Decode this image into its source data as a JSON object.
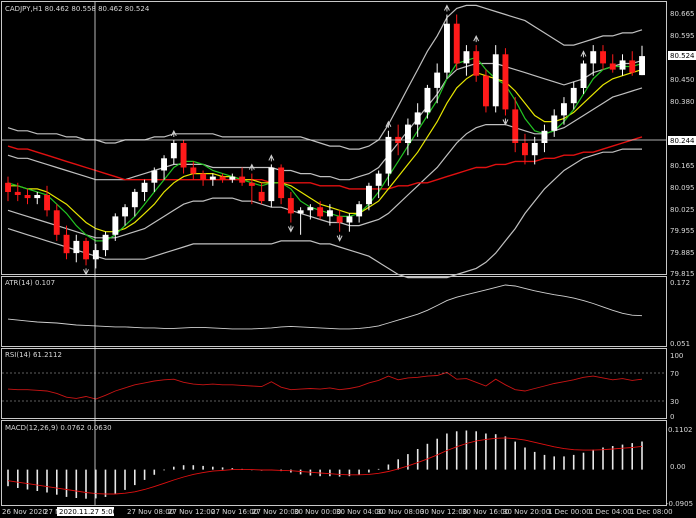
{
  "colors": {
    "background": "#000000",
    "frame": "#c8c8c8",
    "bull": "#ffffff",
    "bear": "#ff1a1a",
    "bands": "#c0c0c0",
    "ma_fast": "#22c522",
    "ma_mid": "#e6e600",
    "ma_slow": "#e01010",
    "atr": "#d0d0d0",
    "rsi": "#c81414",
    "macd_hist": "#e8e8e8",
    "macd_signal": "#e01010",
    "price_tag_bg": "#ffffff"
  },
  "panels": {
    "main": {
      "label": "CADJPY,H1  80.462 80.558 80.462 80.524"
    },
    "atr": {
      "label": "ATR(14) 0.107"
    },
    "rsi": {
      "label": "RSI(14) 61.2112"
    },
    "macd": {
      "label": "MACD(12,26,9) 0.0762 0.0630"
    }
  },
  "price_axis": {
    "ticks": [
      "80.665",
      "80.595",
      "80.524",
      "80.450",
      "80.380",
      "80.244",
      "80.165",
      "80.095",
      "80.025",
      "79.955",
      "79.885",
      "79.815"
    ],
    "current_price": "80.524",
    "crosshair_price": "80.244"
  },
  "atr_axis": {
    "ticks": [
      "0.172",
      "0.051"
    ]
  },
  "rsi_axis": {
    "ticks": [
      "100",
      "70",
      "30",
      "0"
    ]
  },
  "macd_axis": {
    "ticks": [
      "0.1102",
      "0.00",
      "-0.0905"
    ]
  },
  "time_axis": {
    "ticks": [
      "26 Nov 2020",
      "27 Nov 04:00",
      "27 Nov 08:00",
      "27 Nov 12:00",
      "27 Nov 16:00",
      "27 Nov 20:00",
      "30 Nov 00:00",
      "30 Nov 04:00",
      "30 Nov 08:00",
      "30 Nov 12:00",
      "30 Nov 16:00",
      "30 Nov 20:00",
      "1 Dec 00:00",
      "1 Dec 04:00",
      "1 Dec 08:00"
    ],
    "crosshair_time": "2020.11.27 5:00"
  },
  "chart_data": {
    "type": "candlestick",
    "symbol": "CADJPY",
    "timeframe": "H1",
    "ohlc": [
      [
        80.11,
        80.13,
        80.05,
        80.08
      ],
      [
        80.08,
        80.11,
        80.05,
        80.07
      ],
      [
        80.07,
        80.09,
        80.04,
        80.06
      ],
      [
        80.06,
        80.08,
        80.04,
        80.07
      ],
      [
        80.07,
        80.1,
        80.0,
        80.02
      ],
      [
        80.02,
        80.04,
        79.92,
        79.94
      ],
      [
        79.94,
        79.97,
        79.86,
        79.88
      ],
      [
        79.88,
        79.94,
        79.85,
        79.92
      ],
      [
        79.92,
        79.93,
        79.84,
        79.86
      ],
      [
        79.86,
        79.91,
        79.83,
        79.89
      ],
      [
        79.89,
        79.95,
        79.87,
        79.94
      ],
      [
        79.94,
        80.01,
        79.92,
        80.0
      ],
      [
        80.0,
        80.04,
        79.97,
        80.03
      ],
      [
        80.03,
        80.09,
        80.0,
        80.08
      ],
      [
        80.08,
        80.12,
        80.05,
        80.11
      ],
      [
        80.11,
        80.16,
        80.08,
        80.15
      ],
      [
        80.15,
        80.2,
        80.12,
        80.19
      ],
      [
        80.19,
        80.25,
        80.17,
        80.24
      ],
      [
        80.24,
        80.25,
        80.14,
        80.16
      ],
      [
        80.16,
        80.18,
        80.12,
        80.14
      ],
      [
        80.14,
        80.15,
        80.1,
        80.12
      ],
      [
        80.12,
        80.14,
        80.1,
        80.13
      ],
      [
        80.13,
        80.14,
        80.11,
        80.12
      ],
      [
        80.12,
        80.14,
        80.11,
        80.13
      ],
      [
        80.13,
        80.16,
        80.1,
        80.11
      ],
      [
        80.11,
        80.14,
        80.04,
        80.1
      ],
      [
        80.08,
        80.11,
        80.04,
        80.05
      ],
      [
        80.05,
        80.17,
        80.03,
        80.16
      ],
      [
        80.16,
        80.17,
        80.04,
        80.06
      ],
      [
        80.06,
        80.08,
        79.98,
        80.01
      ],
      [
        80.01,
        80.03,
        79.94,
        80.02
      ],
      [
        80.02,
        80.04,
        79.99,
        80.03
      ],
      [
        80.03,
        80.05,
        79.99,
        80.0
      ],
      [
        80.0,
        80.04,
        79.97,
        80.02
      ],
      [
        80.0,
        80.02,
        79.95,
        79.98
      ],
      [
        79.98,
        80.01,
        79.95,
        80.0
      ],
      [
        80.0,
        80.05,
        79.98,
        80.04
      ],
      [
        80.04,
        80.11,
        80.02,
        80.1
      ],
      [
        80.1,
        80.15,
        80.06,
        80.14
      ],
      [
        80.14,
        80.28,
        80.1,
        80.26
      ],
      [
        80.26,
        80.3,
        80.2,
        80.24
      ],
      [
        80.24,
        80.32,
        80.2,
        80.3
      ],
      [
        80.3,
        80.37,
        80.26,
        80.34
      ],
      [
        80.34,
        80.43,
        80.32,
        80.42
      ],
      [
        80.42,
        80.5,
        80.37,
        80.47
      ],
      [
        80.47,
        80.66,
        80.45,
        80.63
      ],
      [
        80.63,
        80.66,
        80.48,
        80.5
      ],
      [
        80.5,
        80.56,
        80.46,
        80.54
      ],
      [
        80.54,
        80.56,
        80.44,
        80.46
      ],
      [
        80.46,
        80.48,
        80.34,
        80.36
      ],
      [
        80.36,
        80.56,
        80.34,
        80.53
      ],
      [
        80.53,
        80.55,
        80.33,
        80.35
      ],
      [
        80.35,
        80.39,
        80.21,
        80.24
      ],
      [
        80.24,
        80.27,
        80.17,
        80.2
      ],
      [
        80.2,
        80.26,
        80.17,
        80.24
      ],
      [
        80.24,
        80.3,
        80.21,
        80.28
      ],
      [
        80.28,
        80.35,
        80.26,
        80.33
      ],
      [
        80.33,
        80.39,
        80.3,
        80.37
      ],
      [
        80.37,
        80.44,
        80.35,
        80.42
      ],
      [
        80.42,
        80.51,
        80.4,
        80.5
      ],
      [
        80.5,
        80.56,
        80.46,
        80.54
      ],
      [
        80.54,
        80.56,
        80.48,
        80.5
      ],
      [
        80.5,
        80.53,
        80.47,
        80.48
      ],
      [
        80.48,
        80.53,
        80.46,
        80.51
      ],
      [
        80.51,
        80.54,
        80.46,
        80.47
      ],
      [
        80.462,
        80.558,
        80.462,
        80.524
      ]
    ],
    "ma_fast": [
      80.11,
      80.1,
      80.09,
      80.08,
      80.07,
      80.04,
      80.01,
      79.97,
      79.94,
      79.92,
      79.92,
      79.94,
      79.97,
      80.0,
      80.04,
      80.08,
      80.12,
      80.16,
      80.18,
      80.18,
      80.17,
      80.15,
      80.14,
      80.13,
      80.12,
      80.11,
      80.1,
      80.11,
      80.11,
      80.09,
      80.05,
      80.03,
      80.02,
      80.01,
      80.0,
      80.0,
      80.01,
      80.04,
      80.08,
      80.13,
      80.18,
      80.23,
      80.28,
      80.33,
      80.38,
      80.45,
      80.5,
      80.51,
      80.52,
      80.48,
      80.45,
      80.43,
      80.38,
      80.32,
      80.28,
      80.27,
      80.28,
      80.31,
      80.35,
      80.4,
      80.45,
      80.48,
      80.49,
      80.49,
      80.49,
      80.5
    ],
    "ma_mid": [
      80.1,
      80.1,
      80.09,
      80.09,
      80.08,
      80.06,
      80.04,
      80.01,
      79.98,
      79.96,
      79.95,
      79.95,
      79.96,
      79.98,
      80.01,
      80.04,
      80.08,
      80.11,
      80.13,
      80.14,
      80.14,
      80.14,
      80.13,
      80.13,
      80.12,
      80.12,
      80.11,
      80.11,
      80.11,
      80.1,
      80.08,
      80.06,
      80.04,
      80.03,
      80.02,
      80.01,
      80.01,
      80.03,
      80.05,
      80.09,
      80.13,
      80.17,
      80.21,
      80.26,
      80.31,
      80.37,
      80.42,
      80.45,
      80.47,
      80.46,
      80.45,
      80.44,
      80.41,
      80.37,
      80.33,
      80.31,
      80.31,
      80.32,
      80.34,
      80.37,
      80.4,
      80.43,
      80.45,
      80.46,
      80.47,
      80.48
    ],
    "ma_slow": [
      80.23,
      80.22,
      80.22,
      80.21,
      80.2,
      80.19,
      80.18,
      80.17,
      80.16,
      80.15,
      80.14,
      80.13,
      80.12,
      80.12,
      80.12,
      80.12,
      80.12,
      80.12,
      80.12,
      80.12,
      80.12,
      80.12,
      80.12,
      80.12,
      80.12,
      80.12,
      80.12,
      80.11,
      80.11,
      80.11,
      80.11,
      80.11,
      80.1,
      80.1,
      80.1,
      80.09,
      80.09,
      80.09,
      80.09,
      80.09,
      80.1,
      80.1,
      80.11,
      80.11,
      80.12,
      80.13,
      80.14,
      80.15,
      80.16,
      80.16,
      80.17,
      80.17,
      80.18,
      80.18,
      80.18,
      80.19,
      80.19,
      80.2,
      80.2,
      80.21,
      80.21,
      80.22,
      80.23,
      80.24,
      80.25,
      80.26
    ],
    "band_upper": [
      80.29,
      80.28,
      80.28,
      80.27,
      80.27,
      80.27,
      80.26,
      80.26,
      80.25,
      80.25,
      80.24,
      80.24,
      80.25,
      80.25,
      80.25,
      80.26,
      80.26,
      80.27,
      80.27,
      80.27,
      80.27,
      80.27,
      80.26,
      80.26,
      80.26,
      80.26,
      80.26,
      80.26,
      80.26,
      80.26,
      80.26,
      80.25,
      80.24,
      80.23,
      80.23,
      80.22,
      80.22,
      80.23,
      80.25,
      80.3,
      80.36,
      80.42,
      80.48,
      80.54,
      80.59,
      80.65,
      80.68,
      80.69,
      80.69,
      80.68,
      80.67,
      80.66,
      80.65,
      80.64,
      80.62,
      80.6,
      80.58,
      80.56,
      80.56,
      80.57,
      80.58,
      80.59,
      80.59,
      80.6,
      80.6,
      80.61
    ],
    "band_lower": [
      79.96,
      79.95,
      79.94,
      79.93,
      79.92,
      79.91,
      79.9,
      79.89,
      79.88,
      79.87,
      79.86,
      79.86,
      79.86,
      79.86,
      79.86,
      79.87,
      79.88,
      79.89,
      79.9,
      79.91,
      79.91,
      79.91,
      79.91,
      79.91,
      79.91,
      79.91,
      79.91,
      79.91,
      79.92,
      79.92,
      79.92,
      79.92,
      79.91,
      79.91,
      79.9,
      79.89,
      79.88,
      79.87,
      79.85,
      79.83,
      79.81,
      79.8,
      79.8,
      79.8,
      79.8,
      79.8,
      79.81,
      79.82,
      79.83,
      79.85,
      79.88,
      79.92,
      79.96,
      80.01,
      80.05,
      80.09,
      80.12,
      80.15,
      80.17,
      80.19,
      80.2,
      80.21,
      80.21,
      80.22,
      80.22,
      80.22
    ],
    "band_mid_upper": [
      80.2,
      80.19,
      80.19,
      80.18,
      80.17,
      80.16,
      80.15,
      80.14,
      80.13,
      80.12,
      80.12,
      80.12,
      80.12,
      80.13,
      80.14,
      80.15,
      80.16,
      80.17,
      80.17,
      80.17,
      80.17,
      80.16,
      80.16,
      80.16,
      80.16,
      80.16,
      80.16,
      80.16,
      80.15,
      80.15,
      80.14,
      80.14,
      80.13,
      80.13,
      80.12,
      80.12,
      80.13,
      80.14,
      80.16,
      80.2,
      80.24,
      80.28,
      80.32,
      80.36,
      80.4,
      80.45,
      80.48,
      80.49,
      80.5,
      80.5,
      80.5,
      80.49,
      80.48,
      80.47,
      80.46,
      80.45,
      80.44,
      80.43,
      80.44,
      80.45,
      80.47,
      80.48,
      80.49,
      80.5,
      80.5,
      80.51
    ],
    "band_mid_lower": [
      80.02,
      80.01,
      80.0,
      79.99,
      79.98,
      79.97,
      79.96,
      79.95,
      79.94,
      79.93,
      79.93,
      79.93,
      79.94,
      79.95,
      79.96,
      79.98,
      80.0,
      80.02,
      80.04,
      80.05,
      80.05,
      80.06,
      80.06,
      80.06,
      80.05,
      80.05,
      80.04,
      80.03,
      80.03,
      80.02,
      80.01,
      80.0,
      79.99,
      79.98,
      79.98,
      79.97,
      79.97,
      79.98,
      79.99,
      80.01,
      80.04,
      80.07,
      80.1,
      80.13,
      80.16,
      80.2,
      80.24,
      80.27,
      80.29,
      80.3,
      80.3,
      80.3,
      80.29,
      80.28,
      80.27,
      80.27,
      80.28,
      80.29,
      80.31,
      80.33,
      80.35,
      80.37,
      80.39,
      80.4,
      80.41,
      80.42
    ],
    "fractal_up_idx": [
      17,
      25,
      27,
      39,
      45,
      48,
      59
    ],
    "fractal_down_idx": [
      8,
      29,
      34,
      51
    ],
    "atr": [
      0.1,
      0.098,
      0.096,
      0.094,
      0.093,
      0.092,
      0.09,
      0.088,
      0.087,
      0.086,
      0.085,
      0.084,
      0.084,
      0.083,
      0.082,
      0.082,
      0.081,
      0.081,
      0.082,
      0.083,
      0.083,
      0.082,
      0.081,
      0.08,
      0.08,
      0.08,
      0.081,
      0.082,
      0.084,
      0.085,
      0.084,
      0.083,
      0.082,
      0.081,
      0.08,
      0.08,
      0.081,
      0.083,
      0.086,
      0.092,
      0.098,
      0.104,
      0.11,
      0.118,
      0.128,
      0.138,
      0.145,
      0.15,
      0.155,
      0.16,
      0.165,
      0.17,
      0.168,
      0.163,
      0.158,
      0.154,
      0.15,
      0.147,
      0.143,
      0.138,
      0.132,
      0.125,
      0.118,
      0.112,
      0.108,
      0.107
    ],
    "rsi": [
      45,
      44,
      44,
      43,
      42,
      38,
      32,
      30,
      33,
      29,
      35,
      42,
      47,
      52,
      55,
      58,
      60,
      61,
      56,
      53,
      52,
      53,
      52,
      52,
      51,
      50,
      49,
      57,
      48,
      44,
      45,
      46,
      45,
      47,
      44,
      46,
      49,
      55,
      59,
      66,
      60,
      63,
      64,
      66,
      67,
      72,
      61,
      62,
      56,
      50,
      61,
      52,
      44,
      42,
      46,
      50,
      54,
      57,
      60,
      64,
      66,
      63,
      60,
      62,
      59,
      61
    ],
    "macd": [
      -0.045,
      -0.05,
      -0.054,
      -0.058,
      -0.062,
      -0.068,
      -0.074,
      -0.077,
      -0.079,
      -0.078,
      -0.074,
      -0.066,
      -0.055,
      -0.042,
      -0.028,
      -0.014,
      -0.002,
      0.008,
      0.012,
      0.012,
      0.01,
      0.008,
      0.006,
      0.004,
      0.002,
      0.0,
      -0.003,
      -0.002,
      -0.004,
      -0.008,
      -0.013,
      -0.016,
      -0.018,
      -0.018,
      -0.019,
      -0.018,
      -0.014,
      -0.008,
      0.002,
      0.014,
      0.028,
      0.042,
      0.056,
      0.07,
      0.084,
      0.098,
      0.104,
      0.106,
      0.104,
      0.098,
      0.096,
      0.09,
      0.076,
      0.06,
      0.048,
      0.04,
      0.036,
      0.036,
      0.04,
      0.046,
      0.054,
      0.06,
      0.064,
      0.068,
      0.072,
      0.0762
    ],
    "macd_signal": [
      -0.03,
      -0.034,
      -0.038,
      -0.042,
      -0.046,
      -0.05,
      -0.054,
      -0.058,
      -0.062,
      -0.065,
      -0.066,
      -0.066,
      -0.064,
      -0.06,
      -0.054,
      -0.046,
      -0.037,
      -0.028,
      -0.02,
      -0.013,
      -0.008,
      -0.004,
      -0.002,
      0.0,
      0.0,
      0.0,
      -0.001,
      -0.001,
      -0.002,
      -0.003,
      -0.005,
      -0.007,
      -0.009,
      -0.011,
      -0.013,
      -0.014,
      -0.014,
      -0.013,
      -0.01,
      -0.005,
      0.002,
      0.01,
      0.019,
      0.029,
      0.04,
      0.052,
      0.062,
      0.071,
      0.078,
      0.082,
      0.085,
      0.086,
      0.084,
      0.08,
      0.074,
      0.068,
      0.062,
      0.057,
      0.054,
      0.053,
      0.053,
      0.054,
      0.056,
      0.058,
      0.06,
      0.063
    ]
  }
}
